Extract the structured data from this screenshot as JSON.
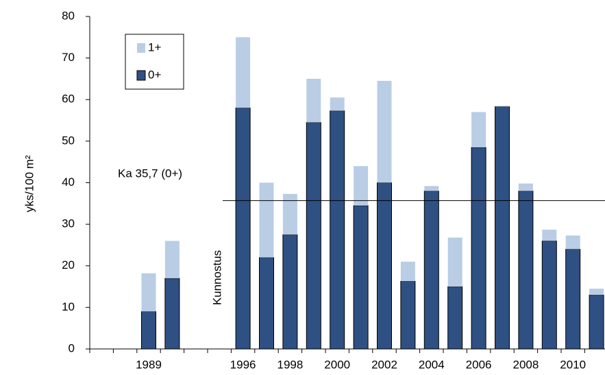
{
  "chart_data": {
    "type": "stacked_bar",
    "y_label": "yks/100 m²",
    "categories": [
      null,
      null,
      "1989",
      null,
      null,
      null,
      "1996",
      null,
      "1998",
      null,
      "2000",
      null,
      "2002",
      null,
      "2004",
      null,
      "2006",
      null,
      "2008",
      null,
      "2010",
      null
    ],
    "series": [
      {
        "name": "0+",
        "color": "#2f5082",
        "values": [
          null,
          null,
          9,
          17,
          null,
          null,
          58,
          22,
          27.5,
          54.5,
          57.3,
          34.5,
          40,
          16.3,
          38,
          15,
          48.5,
          58.3,
          38,
          26,
          24,
          13
        ]
      },
      {
        "name": "1+",
        "color": "#b9cde5",
        "values": [
          null,
          null,
          9.2,
          9,
          null,
          null,
          17,
          18,
          9.8,
          10.5,
          3.2,
          9.5,
          24.5,
          4.7,
          1.2,
          11.8,
          8.5,
          0.2,
          1.8,
          2.7,
          3.3,
          1.5
        ]
      }
    ],
    "ylim": [
      0,
      80
    ],
    "yticks": [
      0,
      10,
      20,
      30,
      40,
      50,
      60,
      70,
      80
    ],
    "reference_line": {
      "value": 35.7,
      "label": "Ka 35,7 (0+)"
    },
    "annotation": "Kunnostus"
  }
}
